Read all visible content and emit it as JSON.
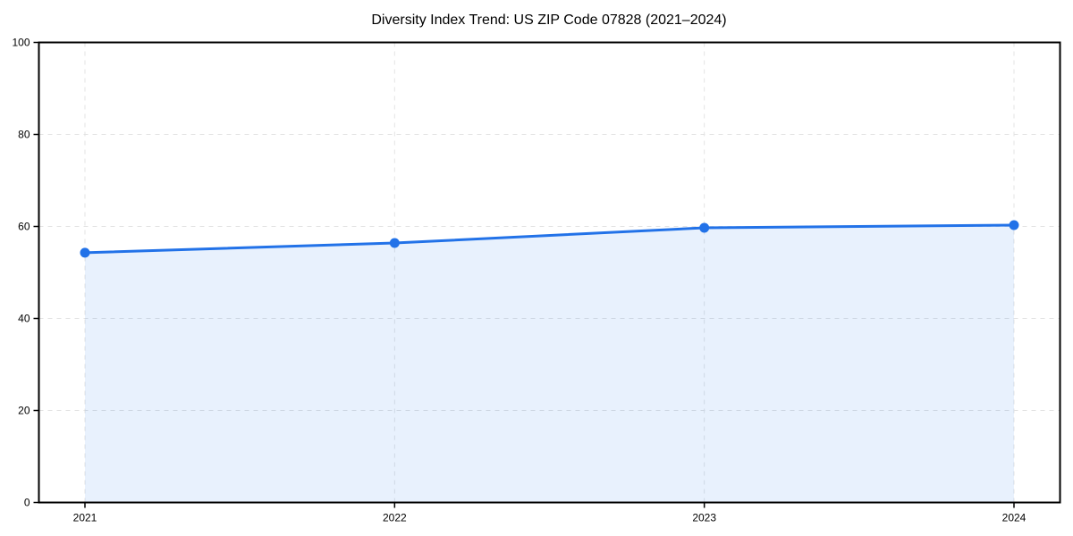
{
  "page": {
    "background": "#ffffff"
  },
  "chart_data": {
    "type": "line",
    "title": "Diversity Index Trend: US ZIP Code 07828 (2021–2024)",
    "categories": [
      "2021",
      "2022",
      "2023",
      "2024"
    ],
    "values": [
      54.3,
      56.4,
      59.7,
      60.3
    ],
    "xlabel": "",
    "ylabel": "",
    "ylim": [
      0,
      100
    ],
    "yticks": [
      0,
      20,
      40,
      60,
      80,
      100
    ],
    "grid": true,
    "grid_style": "dashed",
    "legend_position": "none",
    "area_fill": true,
    "marker": "circle",
    "colors": {
      "line": "#2272e8",
      "marker": "#2272e8",
      "area_fill": "#2272e8",
      "grid": "#e3e3e3",
      "axis": "#000000",
      "text": "#000000"
    },
    "area_fill_opacity": 0.1
  }
}
